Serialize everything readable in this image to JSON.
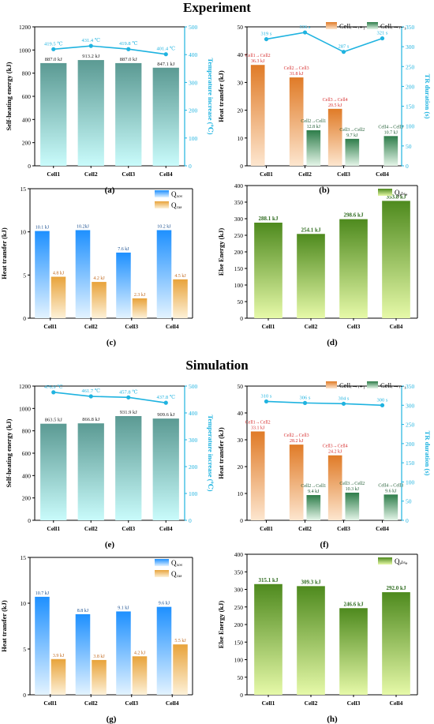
{
  "sections": {
    "experiment": "Experiment",
    "simulation": "Simulation"
  },
  "colors": {
    "cyan": "#1fb3e0",
    "orange": "#e07b27",
    "green": "#2e8b57",
    "red": "#d62e2e",
    "teal": "#5b9a93",
    "blue": "#1e90ff",
    "gold": "#e8a33b",
    "lime": "#7fbf2e"
  },
  "chart_data": [
    {
      "id": "a",
      "panel_label": "(a)",
      "type": "bar+line",
      "categories": [
        "Cell1",
        "Cell2",
        "Cell3",
        "Cell4"
      ],
      "ylabel": "Self-heating energy (kJ)",
      "ylim": [
        0,
        1200
      ],
      "yticks": [
        0,
        200,
        400,
        600,
        800,
        1000,
        1200
      ],
      "y2label": "Temperature increase (℃)",
      "y2lim": [
        0,
        500
      ],
      "y2ticks": [
        0,
        100,
        200,
        300,
        400,
        500
      ],
      "series": [
        {
          "kind": "bar",
          "values": [
            887.0,
            913.2,
            887.0,
            847.1
          ],
          "labels": [
            "887.0 kJ",
            "913.2 kJ",
            "887.0 kJ",
            "847.1 kJ"
          ]
        },
        {
          "kind": "line",
          "axis": "y2",
          "values": [
            419.5,
            431.4,
            419.8,
            401.4
          ],
          "labels": [
            "419.5 ℃",
            "431.4 ℃",
            "419.8 ℃",
            "401.4 ℃"
          ]
        }
      ]
    },
    {
      "id": "b",
      "panel_label": "(b)",
      "type": "bar+line",
      "categories": [
        "Cell1",
        "Cell2",
        "Cell3",
        "Cell4"
      ],
      "ylabel": "Heat transfer (kJ)",
      "ylim": [
        0,
        50
      ],
      "yticks": [
        0,
        10,
        20,
        30,
        40,
        50
      ],
      "y2label": "TR duration (s)",
      "y2lim": [
        0,
        350
      ],
      "y2ticks": [
        0,
        50,
        100,
        150,
        200,
        250,
        300,
        350
      ],
      "legend": [
        "Cellᵢ→ᵢ₊₁",
        "Cellᵢ→ᵢ₋₁"
      ],
      "series": [
        {
          "kind": "bar",
          "name": "Cellᵢ→ᵢ₊₁",
          "values": [
            36.3,
            31.8,
            20.5,
            null
          ],
          "labels": [
            "36.3 kJ",
            "31.8 kJ",
            "20.5 kJ",
            ""
          ],
          "tags": [
            "Cell1→Cell2",
            "Cell2→Cell3",
            "Cell3→Cell4",
            ""
          ]
        },
        {
          "kind": "bar",
          "name": "Cellᵢ→ᵢ₋₁",
          "values": [
            null,
            12.8,
            9.7,
            10.7
          ],
          "labels": [
            "",
            "12.8 kJ",
            "9.7 kJ",
            "10.7 kJ"
          ],
          "tags": [
            "",
            "Cell2→Cell1",
            "Cell3→Cell2",
            "Cell4→Cell3"
          ]
        },
        {
          "kind": "line",
          "axis": "y2",
          "values": [
            319,
            336,
            287,
            321
          ],
          "labels": [
            "319 s",
            "336 s",
            "287 s",
            "321 s"
          ]
        }
      ]
    },
    {
      "id": "c",
      "panel_label": "(c)",
      "type": "bar",
      "categories": [
        "Cell1",
        "Cell2",
        "Cell3",
        "Cell4"
      ],
      "ylabel": "Heat transfer (kJ)",
      "ylim": [
        0,
        15
      ],
      "yticks": [
        0,
        5,
        10,
        15
      ],
      "legend": [
        "Qₓₒᵥ",
        "Qᵣₐₔ"
      ],
      "series": [
        {
          "kind": "bar",
          "name": "Q_cov",
          "values": [
            10.1,
            10.2,
            7.6,
            10.2
          ],
          "labels": [
            "10.1 kJ",
            "10.2kJ",
            "7.6 kJ",
            "10.2 kJ"
          ]
        },
        {
          "kind": "bar",
          "name": "Q_rad",
          "values": [
            4.8,
            4.2,
            2.3,
            4.5
          ],
          "labels": [
            "4.8 kJ",
            "4.2 kJ",
            "2.3 kJ",
            "4.5 kJ"
          ]
        }
      ]
    },
    {
      "id": "d",
      "panel_label": "(d)",
      "type": "bar",
      "categories": [
        "Cell1",
        "Cell2",
        "Cell3",
        "Cell4"
      ],
      "ylabel": "Else Energy (kJ)",
      "ylim": [
        0,
        400
      ],
      "yticks": [
        0,
        50,
        100,
        150,
        200,
        250,
        300,
        350,
        400
      ],
      "legend": [
        "Qₑₗₛₑ"
      ],
      "series": [
        {
          "kind": "bar",
          "name": "Q_else",
          "values": [
            288.1,
            254.1,
            298.6,
            353.8
          ],
          "labels": [
            "288.1 kJ",
            "254.1 kJ",
            "298.6 kJ",
            "353.8 kJ"
          ]
        }
      ]
    },
    {
      "id": "e",
      "panel_label": "(e)",
      "type": "bar+line",
      "categories": [
        "Cell1",
        "Cell2",
        "Cell3",
        "Cell4"
      ],
      "ylabel": "Self-heating energy (kJ)",
      "ylim": [
        0,
        1200
      ],
      "yticks": [
        0,
        200,
        400,
        600,
        800,
        1000,
        1200
      ],
      "y2label": "Temperature increase (℃)",
      "y2lim": [
        0,
        500
      ],
      "y2ticks": [
        0,
        100,
        200,
        300,
        400,
        500
      ],
      "series": [
        {
          "kind": "bar",
          "values": [
            863.5,
            866.8,
            931.9,
            909.6
          ],
          "labels": [
            "863.5 kJ",
            "866.8 kJ",
            "931.9 kJ",
            "909.6 kJ"
          ]
        },
        {
          "kind": "line",
          "axis": "y2",
          "values": [
            476.9,
            461.7,
            457.8,
            437.8
          ],
          "labels": [
            "476.9 ℃",
            "461.7 ℃",
            "457.8 ℃",
            "437.8 ℃"
          ]
        }
      ]
    },
    {
      "id": "f",
      "panel_label": "(f)",
      "type": "bar+line",
      "categories": [
        "Cell1",
        "Cell2",
        "Cell3",
        "Cell4"
      ],
      "ylabel": "Heat transfer (kJ)",
      "ylim": [
        0,
        50
      ],
      "yticks": [
        0,
        10,
        20,
        30,
        40,
        50
      ],
      "y2label": "TR duration (s)",
      "y2lim": [
        0,
        350
      ],
      "y2ticks": [
        0,
        50,
        100,
        150,
        200,
        250,
        300,
        350
      ],
      "legend": [
        "Cellᵢ→ᵢ₊₁",
        "Cellᵢ→ᵢ₋₁"
      ],
      "series": [
        {
          "kind": "bar",
          "name": "Cellᵢ→ᵢ₊₁",
          "values": [
            33.1,
            28.2,
            24.2,
            null
          ],
          "labels": [
            "33.1 kJ",
            "28.2 kJ",
            "24.2 kJ",
            ""
          ],
          "tags": [
            "Cell1→Cell2",
            "Cell2→Cell3",
            "Cell3→Cell4",
            ""
          ]
        },
        {
          "kind": "bar",
          "name": "Cellᵢ→ᵢ₋₁",
          "values": [
            null,
            9.4,
            10.3,
            9.6
          ],
          "labels": [
            "",
            "9.4 kJ",
            "10.3 kJ",
            "9.6 kJ"
          ],
          "tags": [
            "",
            "Cell2→Cell1",
            "Cell3→Cell2",
            "Cell4→Cell3"
          ]
        },
        {
          "kind": "line",
          "axis": "y2",
          "values": [
            310,
            306,
            304,
            300
          ],
          "labels": [
            "310 s",
            "306 s",
            "304 s",
            "300 s"
          ]
        }
      ]
    },
    {
      "id": "g",
      "panel_label": "(g)",
      "type": "bar",
      "categories": [
        "Cell1",
        "Cell2",
        "Cell3",
        "Cell4"
      ],
      "ylabel": "Heat transfer (kJ)",
      "ylim": [
        0,
        15
      ],
      "yticks": [
        0,
        5,
        10,
        15
      ],
      "legend": [
        "Qₓₒᵥ",
        "Qᵣₐₔ"
      ],
      "series": [
        {
          "kind": "bar",
          "name": "Q_cov",
          "values": [
            10.7,
            8.8,
            9.1,
            9.6
          ],
          "labels": [
            "10.7 kJ",
            "8.8 kJ",
            "9.1 kJ",
            "9.6 kJ"
          ]
        },
        {
          "kind": "bar",
          "name": "Q_rad",
          "values": [
            3.9,
            3.8,
            4.2,
            5.5
          ],
          "labels": [
            "3.9 kJ",
            "3.8 kJ",
            "4.2 kJ",
            "5.5 kJ"
          ]
        }
      ]
    },
    {
      "id": "h",
      "panel_label": "(h)",
      "type": "bar",
      "categories": [
        "Cell1",
        "Cell2",
        "Cell3",
        "Cell4"
      ],
      "ylabel": "Else Energy (kJ)",
      "ylim": [
        0,
        400
      ],
      "yticks": [
        0,
        50,
        100,
        150,
        200,
        250,
        300,
        350,
        400
      ],
      "legend": [
        "Qₑₗₛₑ"
      ],
      "series": [
        {
          "kind": "bar",
          "name": "Q_else",
          "values": [
            315.1,
            309.3,
            246.6,
            292.0
          ],
          "labels": [
            "315.1 kJ",
            "309.3 kJ",
            "246.6 kJ",
            "292.0 kJ"
          ]
        }
      ]
    }
  ]
}
